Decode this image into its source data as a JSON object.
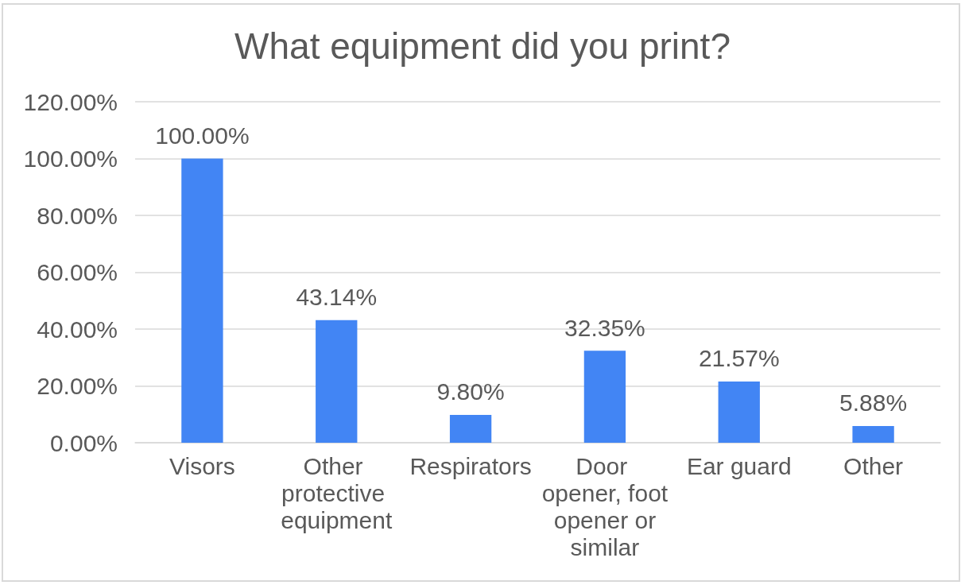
{
  "chart_data": {
    "type": "bar",
    "title": "What equipment did you print?",
    "categories": [
      "Visors",
      "Other protective equipment",
      "Respirators",
      "Door opener, foot opener or similar",
      "Ear guard",
      "Other"
    ],
    "values": [
      100,
      43.14,
      9.8,
      32.35,
      21.57,
      5.88
    ],
    "value_labels": [
      "100.00%",
      "43.14%",
      "9.80%",
      "32.35%",
      "21.57%",
      "5.88%"
    ],
    "color": "#4285f4",
    "ylim": [
      0,
      120
    ],
    "yticks": [
      {
        "value": 0,
        "label": "0.00%"
      },
      {
        "value": 20,
        "label": "20.00%"
      },
      {
        "value": 40,
        "label": "40.00%"
      },
      {
        "value": 60,
        "label": "60.00%"
      },
      {
        "value": 80,
        "label": "80.00%"
      },
      {
        "value": 100,
        "label": "100.00%"
      },
      {
        "value": 120,
        "label": "120.00%"
      }
    ],
    "grid": "y"
  }
}
